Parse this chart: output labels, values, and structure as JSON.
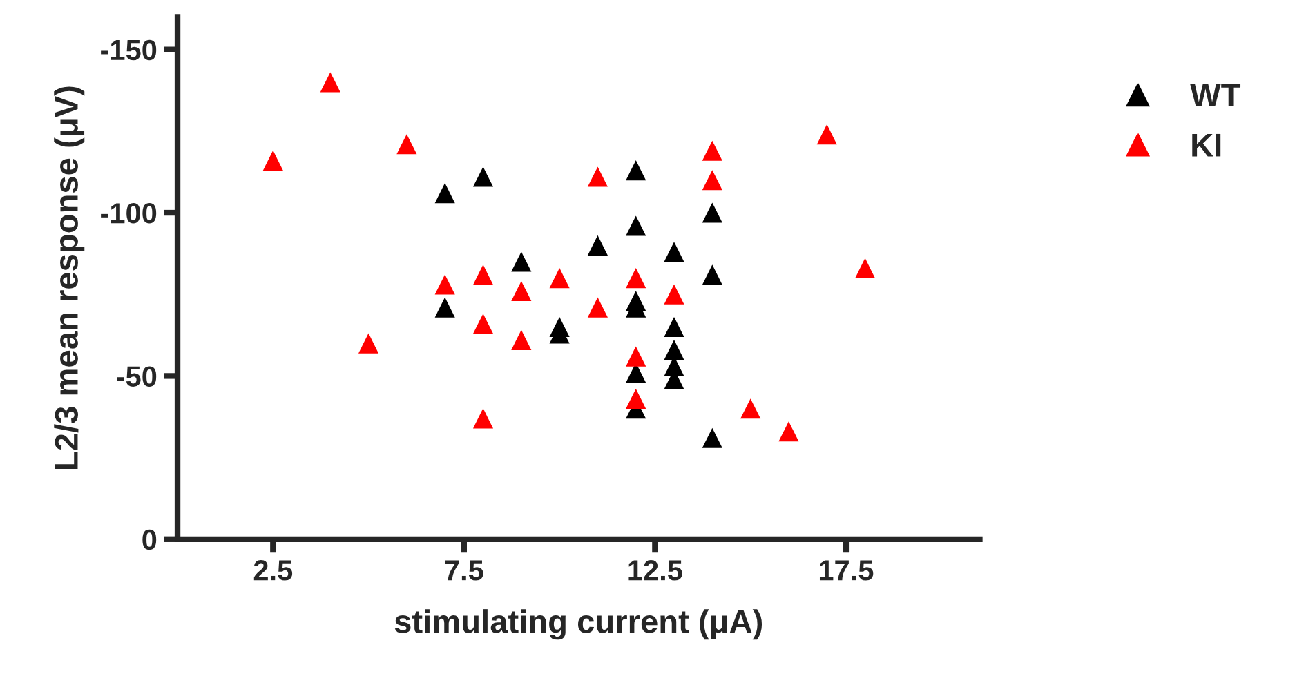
{
  "chart_data": {
    "type": "scatter",
    "xlabel": "stimulating current (μA)",
    "ylabel": "L2/3 mean response (μV)",
    "xlim": [
      0,
      21
    ],
    "xticks": [
      2.5,
      7.5,
      12.5,
      17.5
    ],
    "ylim": [
      0,
      -160
    ],
    "yticks": [
      0,
      -50,
      -100,
      -150
    ],
    "marker": "triangle",
    "grid": false,
    "legend": "top right",
    "series": [
      {
        "name": "WT",
        "color": "#000000",
        "x": [
          7,
          7,
          8,
          9,
          10,
          10,
          11,
          12,
          12,
          12,
          12,
          12,
          12,
          13,
          13,
          13,
          13,
          13,
          14,
          14,
          14
        ],
        "values": [
          -106,
          -71,
          -111,
          -85,
          -63,
          -65,
          -90,
          -113,
          -96,
          -73,
          -71,
          -51,
          -40,
          -88,
          -65,
          -58,
          -53,
          -49,
          -100,
          -81,
          -31
        ]
      },
      {
        "name": "KI",
        "color": "#ff0000",
        "x": [
          2.5,
          4,
          5,
          6,
          7,
          8,
          8,
          8,
          9,
          9,
          10,
          11,
          11,
          12,
          12,
          12,
          13,
          14,
          14,
          15,
          16,
          17,
          18
        ],
        "values": [
          -116,
          -140,
          -60,
          -121,
          -78,
          -81,
          -66,
          -37,
          -76,
          -61,
          -80,
          -111,
          -71,
          -80,
          -56,
          -43,
          -75,
          -119,
          -110,
          -40,
          -33,
          -124,
          -83
        ]
      }
    ]
  }
}
